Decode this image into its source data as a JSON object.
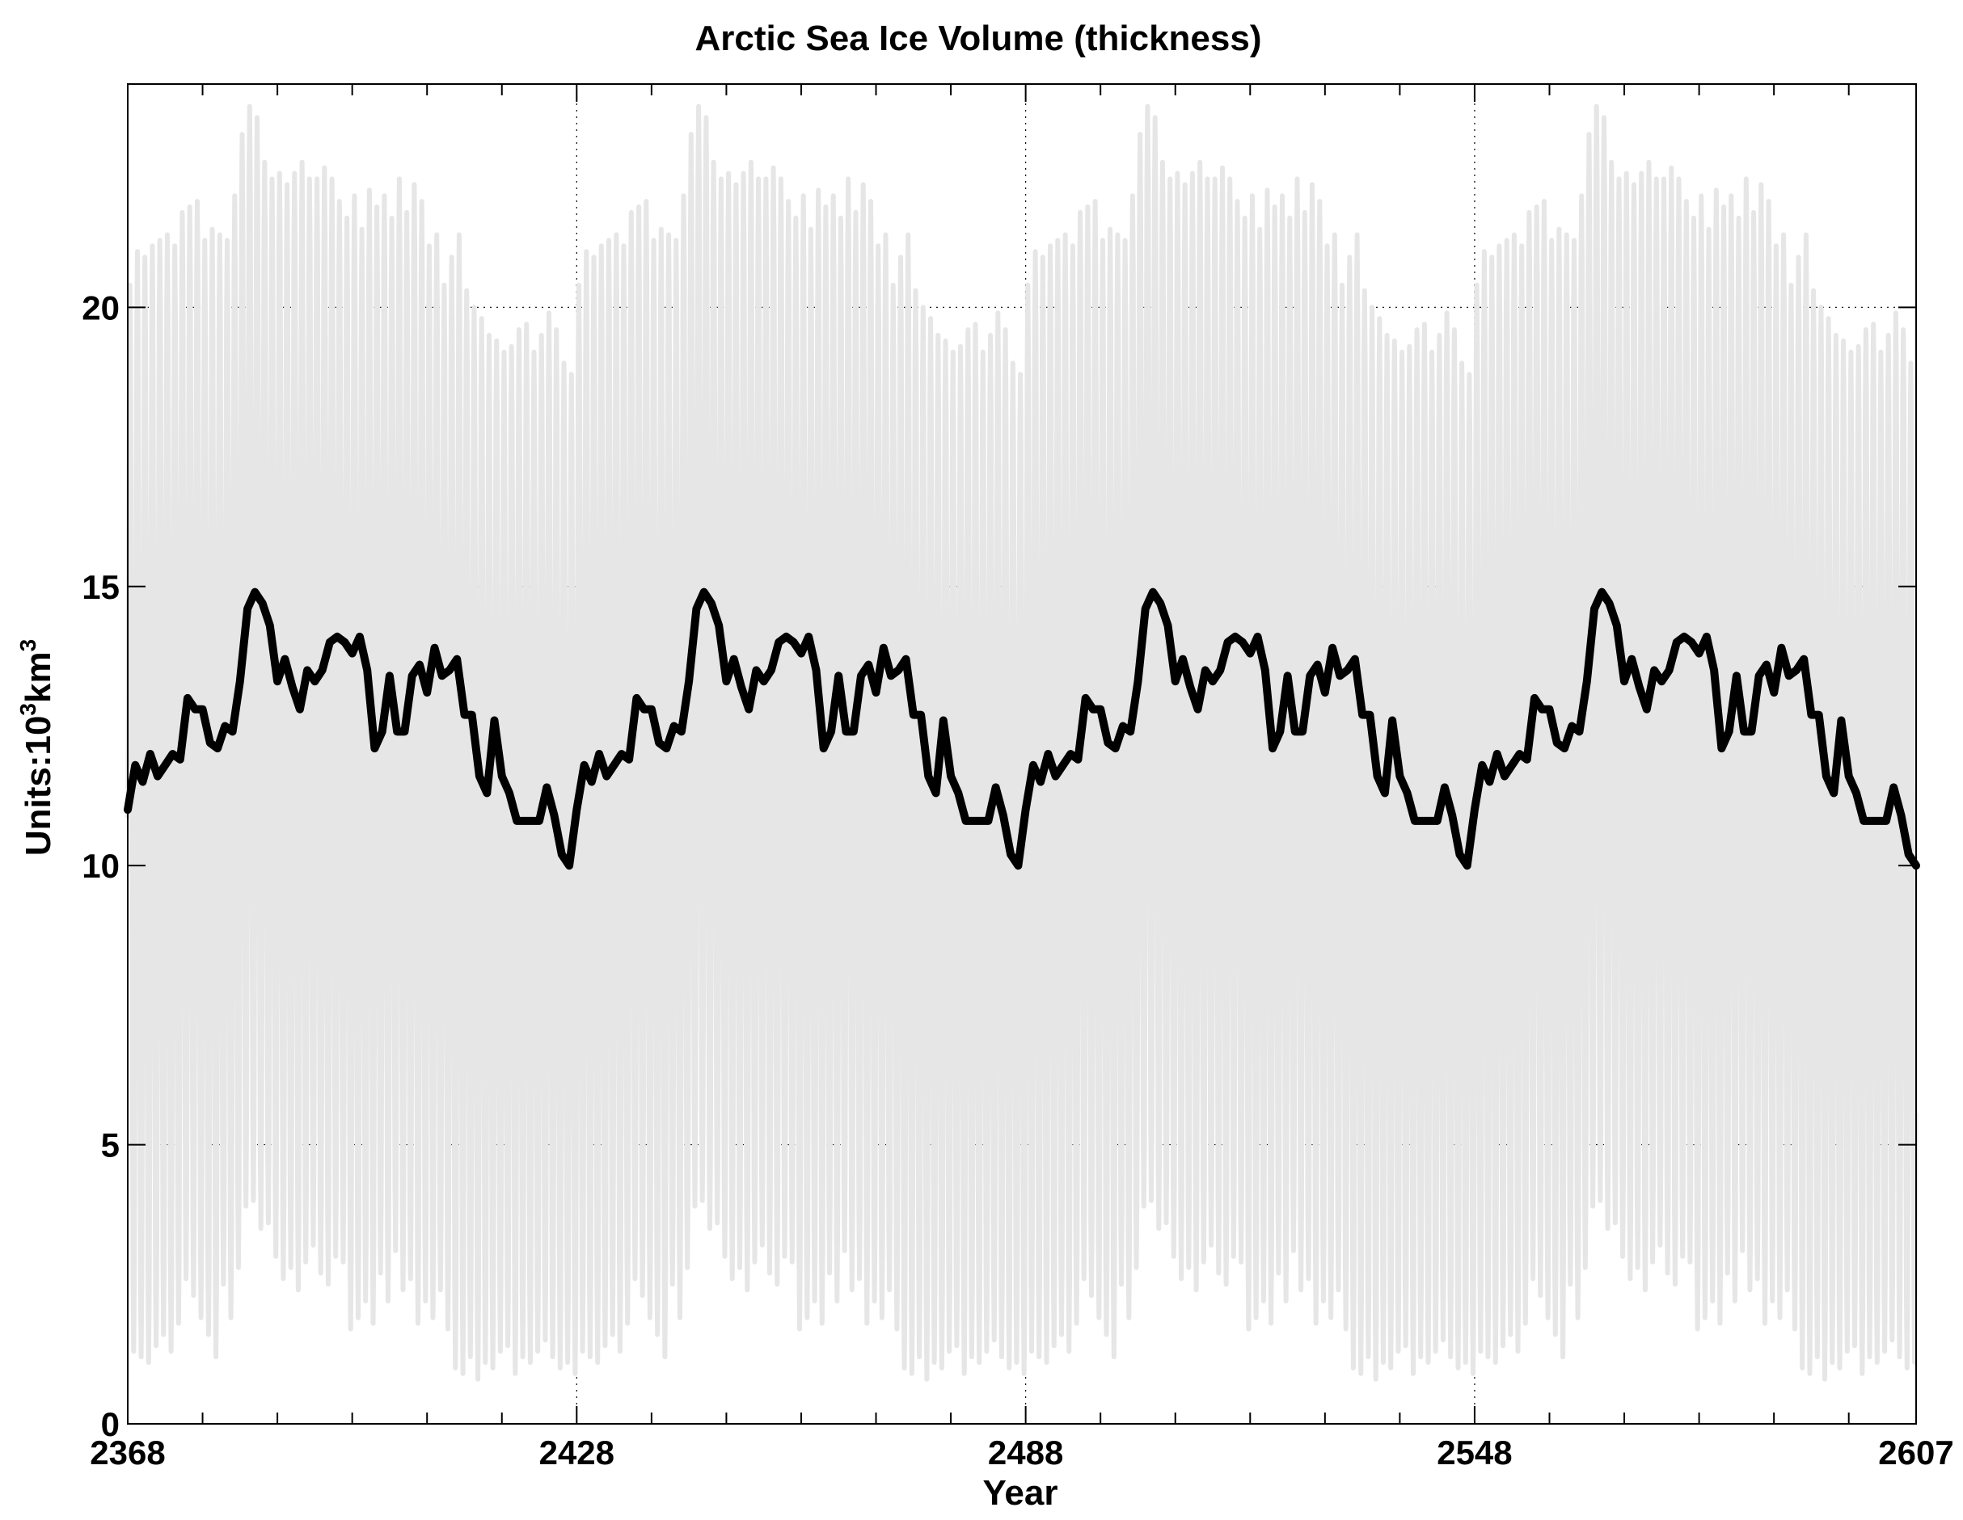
{
  "chart_data": {
    "type": "line",
    "title": "Arctic Sea Ice Volume (thickness)",
    "xlabel": "Year",
    "ylabel_prefix": "Units:10",
    "ylabel_sup1": "3",
    "ylabel_mid": "km",
    "ylabel_sup2": "3",
    "xlim": [
      2368,
      2607
    ],
    "ylim": [
      0,
      24
    ],
    "x_ticks": [
      2368,
      2428,
      2488,
      2548,
      2607
    ],
    "x_tick_labels": [
      "2368",
      "2428",
      "2488",
      "2548",
      "2607"
    ],
    "y_ticks": [
      0,
      5,
      10,
      15,
      20
    ],
    "y_tick_labels": [
      "0",
      "5",
      "10",
      "15",
      "20"
    ],
    "grid": true,
    "monthly_series": {
      "color": "#e6e6e6",
      "cycle_years": 60,
      "seasonal_max_annual": [
        20.4,
        21.0,
        20.9,
        21.1,
        21.2,
        21.3,
        21.1,
        21.7,
        21.8,
        21.9,
        21.2,
        21.4,
        21.3,
        21.2,
        22.0,
        23.1,
        23.6,
        23.4,
        22.6,
        22.3,
        22.4,
        22.2,
        22.4,
        22.6,
        22.3,
        22.3,
        22.5,
        22.3,
        21.9,
        21.6,
        22.0,
        21.4,
        22.1,
        21.8,
        22.0,
        21.6,
        22.3,
        21.7,
        22.2,
        21.9,
        21.1,
        21.3,
        20.4,
        20.9,
        21.3,
        20.3,
        20.0,
        19.8,
        19.5,
        19.4,
        19.2,
        19.3,
        19.6,
        19.7,
        19.2,
        19.5,
        19.9,
        19.6,
        19.0,
        18.8
      ],
      "seasonal_min_annual": [
        1.3,
        1.2,
        1.1,
        1.4,
        1.6,
        1.3,
        1.8,
        2.6,
        2.3,
        1.9,
        1.6,
        1.2,
        2.5,
        1.9,
        2.8,
        3.9,
        4.0,
        3.5,
        3.6,
        3.0,
        2.6,
        2.8,
        2.4,
        2.9,
        3.2,
        2.7,
        2.5,
        3.0,
        2.9,
        1.7,
        1.9,
        2.2,
        1.8,
        2.7,
        2.2,
        3.1,
        2.4,
        2.6,
        1.8,
        2.2,
        1.9,
        2.4,
        1.7,
        1.0,
        0.9,
        1.2,
        0.8,
        1.1,
        1.0,
        1.3,
        1.4,
        0.9,
        1.2,
        1.1,
        1.3,
        1.5,
        1.2,
        1.0,
        1.1,
        0.9
      ]
    },
    "series": [
      {
        "color": "#000000",
        "x": [
          2368,
          2369,
          2370,
          2371,
          2372,
          2373,
          2374,
          2375,
          2376,
          2377,
          2378,
          2379,
          2380,
          2381,
          2382,
          2383,
          2384,
          2385,
          2386,
          2387,
          2388,
          2389,
          2390,
          2391,
          2392,
          2393,
          2394,
          2395,
          2396,
          2397,
          2398,
          2399,
          2400,
          2401,
          2402,
          2403,
          2404,
          2405,
          2406,
          2407,
          2408,
          2409,
          2410,
          2411,
          2412,
          2413,
          2414,
          2415,
          2416,
          2417,
          2418,
          2419,
          2420,
          2421,
          2422,
          2423,
          2424,
          2425,
          2426,
          2427
        ],
        "values": [
          11.0,
          11.8,
          11.5,
          12.0,
          11.6,
          11.8,
          12.0,
          11.9,
          13.0,
          12.8,
          12.8,
          12.2,
          12.1,
          12.5,
          12.4,
          13.3,
          14.6,
          14.9,
          14.7,
          14.3,
          13.3,
          13.7,
          13.2,
          12.8,
          13.5,
          13.3,
          13.5,
          14.0,
          14.1,
          14.0,
          13.8,
          14.1,
          13.5,
          12.1,
          12.4,
          13.4,
          12.4,
          12.4,
          13.4,
          13.6,
          13.1,
          13.9,
          13.4,
          13.5,
          13.7,
          12.7,
          12.7,
          11.6,
          11.3,
          12.6,
          11.6,
          11.3,
          10.8,
          10.8,
          10.8,
          10.8,
          11.4,
          10.9,
          10.2,
          10.0
        ]
      }
    ]
  }
}
